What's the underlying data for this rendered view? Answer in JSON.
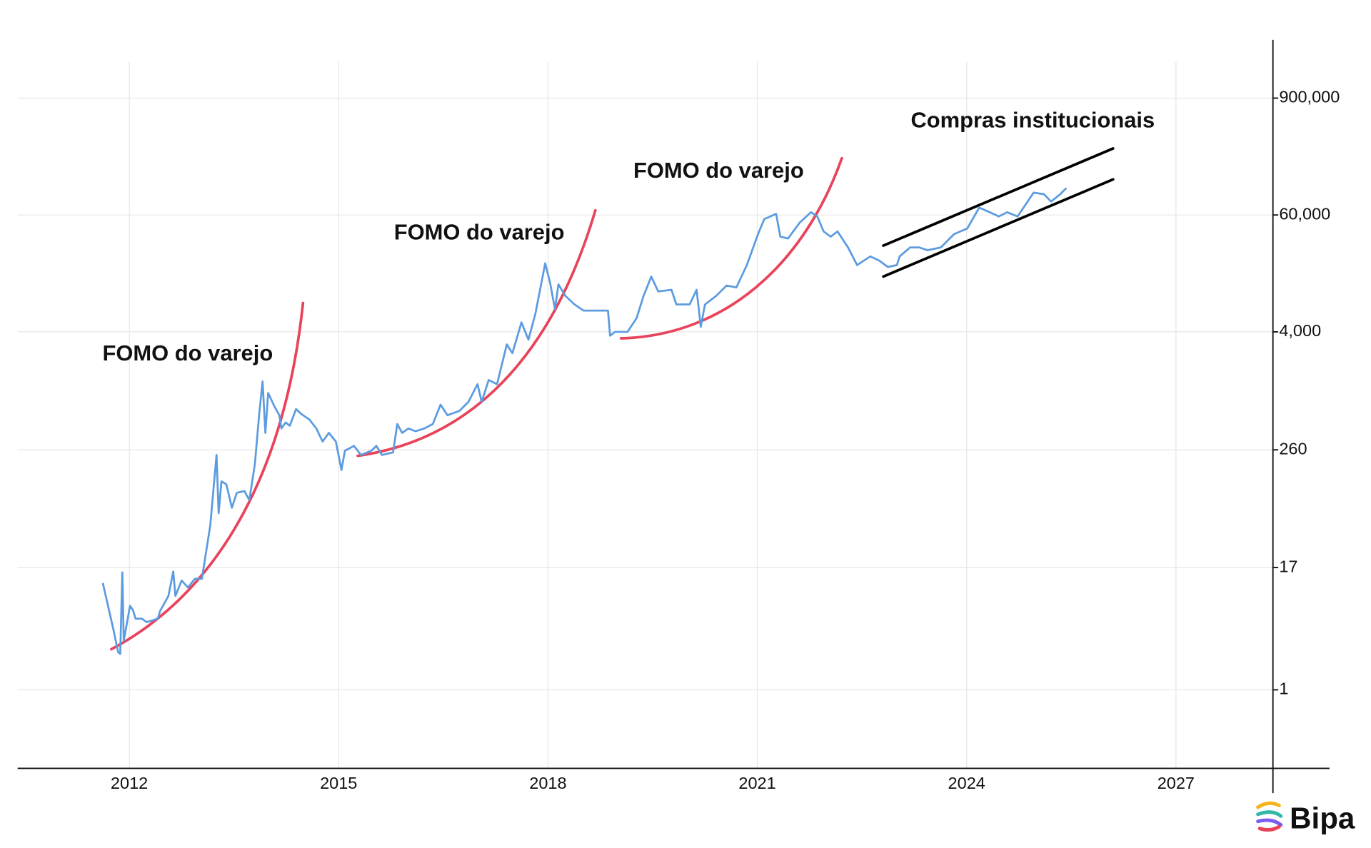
{
  "chart_data": {
    "type": "line",
    "x": [
      2011.62,
      2011.77,
      2011.84,
      2011.87,
      2011.9,
      2011.92,
      2012.01,
      2012.05,
      2012.09,
      2012.18,
      2012.25,
      2012.41,
      2012.44,
      2012.56,
      2012.63,
      2012.66,
      2012.75,
      2012.84,
      2012.94,
      2013.04,
      2013.16,
      2013.25,
      2013.28,
      2013.32,
      2013.39,
      2013.47,
      2013.54,
      2013.65,
      2013.72,
      2013.8,
      2013.86,
      2013.91,
      2013.95,
      2013.99,
      2014.08,
      2014.15,
      2014.18,
      2014.24,
      2014.3,
      2014.39,
      2014.46,
      2014.58,
      2014.68,
      2014.77,
      2014.86,
      2014.96,
      2015.04,
      2015.09,
      2015.22,
      2015.32,
      2015.47,
      2015.54,
      2015.62,
      2015.78,
      2015.84,
      2015.91,
      2016.0,
      2016.1,
      2016.23,
      2016.35,
      2016.46,
      2016.56,
      2016.73,
      2016.86,
      2016.99,
      2017.05,
      2017.15,
      2017.27,
      2017.41,
      2017.49,
      2017.62,
      2017.72,
      2017.82,
      2017.96,
      2018.03,
      2018.1,
      2018.15,
      2018.25,
      2018.38,
      2018.51,
      2018.66,
      2018.86,
      2018.89,
      2018.96,
      2019.14,
      2019.27,
      2019.37,
      2019.48,
      2019.58,
      2019.77,
      2019.84,
      2020.03,
      2020.13,
      2020.19,
      2020.25,
      2020.41,
      2020.56,
      2020.7,
      2020.85,
      2021.01,
      2021.1,
      2021.27,
      2021.33,
      2021.44,
      2021.61,
      2021.77,
      2021.86,
      2021.95,
      2022.05,
      2022.15,
      2022.3,
      2022.43,
      2022.62,
      2022.75,
      2022.87,
      2023.0,
      2023.04,
      2023.19,
      2023.32,
      2023.44,
      2023.63,
      2023.82,
      2024.01,
      2024.18,
      2024.33,
      2024.46,
      2024.58,
      2024.73,
      2024.96,
      2025.11,
      2025.21,
      2025.34,
      2025.43
    ],
    "values": [
      11.9,
      4.1,
      2.4,
      2.3,
      15.2,
      3.1,
      7.0,
      6.4,
      5.2,
      5.2,
      4.8,
      5.2,
      6.2,
      8.8,
      15.5,
      8.8,
      12.6,
      10.7,
      13.1,
      13.1,
      45,
      231,
      60,
      125,
      117,
      68,
      96,
      100,
      81,
      188,
      580,
      1265,
      385,
      970,
      710,
      580,
      427,
      490,
      455,
      670,
      600,
      525,
      427,
      315,
      385,
      315,
      163,
      255,
      285,
      231,
      255,
      285,
      231,
      245,
      473,
      385,
      427,
      400,
      427,
      473,
      740,
      580,
      640,
      790,
      1190,
      790,
      1310,
      1190,
      2990,
      2440,
      4980,
      3340,
      6100,
      19600,
      12500,
      6800,
      12000,
      9200,
      7550,
      6550,
      6550,
      6550,
      3660,
      4000,
      4000,
      5500,
      9200,
      14400,
      10200,
      10600,
      7550,
      7550,
      10600,
      4500,
      7550,
      9200,
      11700,
      11200,
      18800,
      38500,
      54600,
      61600,
      36300,
      34800,
      50500,
      64000,
      58000,
      41000,
      36300,
      41000,
      28300,
      18800,
      23000,
      20800,
      18000,
      18800,
      23000,
      28300,
      28300,
      26500,
      28300,
      38500,
      44000,
      71100,
      64000,
      58000,
      64000,
      58000,
      100700,
      97000,
      82000,
      97000,
      112000
    ],
    "color": "#5b9be0",
    "xlim": [
      2010.4,
      2029.2
    ],
    "xticks": [
      2012,
      2015,
      2018,
      2021,
      2024,
      2027
    ],
    "ylim": [
      0.162,
      3470000
    ],
    "log_scale": true,
    "yticks": [
      1,
      17,
      260,
      {
        "value": 4000,
        "label": "4,000"
      },
      {
        "value": 60000,
        "label": "60,000"
      },
      {
        "value": 900000,
        "label": "900,000"
      }
    ],
    "grid": true,
    "annotations": [
      "FOMO do varejo",
      "FOMO do varejo",
      "FOMO do varejo",
      "Compras institucionais"
    ],
    "logo": "Bipa"
  }
}
